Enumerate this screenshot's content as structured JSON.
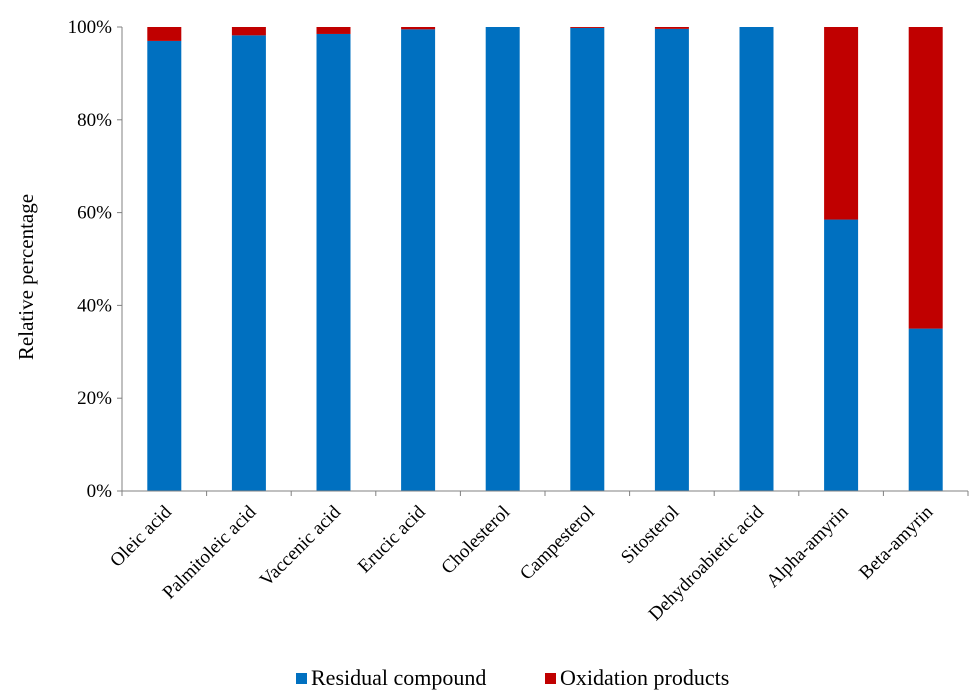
{
  "chart_data": {
    "type": "bar",
    "stacked": true,
    "normalized": true,
    "categories": [
      "Oleic acid",
      "Palmitoleic acid",
      "Vaccenic acid",
      "Erucic acid",
      "Cholesterol",
      "Campesterol",
      "Sitosterol",
      "Dehydroabietic acid",
      "Alpha-amyrin",
      "Beta-amyrin"
    ],
    "series": [
      {
        "name": "Residual compound",
        "color": "#0070C0",
        "values": [
          97,
          98.2,
          98.5,
          99.5,
          100,
          99.8,
          99.6,
          100,
          58.5,
          35
        ]
      },
      {
        "name": "Oxidation products",
        "color": "#C00000",
        "values": [
          3,
          1.8,
          1.5,
          0.5,
          0,
          0.2,
          0.4,
          0,
          41.5,
          65
        ]
      }
    ],
    "ylabel": "Relative percentage",
    "ylim": [
      0,
      100
    ],
    "yticks": [
      "0%",
      "20%",
      "40%",
      "60%",
      "80%",
      "100%"
    ],
    "grid": false,
    "legend_position": "bottom"
  }
}
